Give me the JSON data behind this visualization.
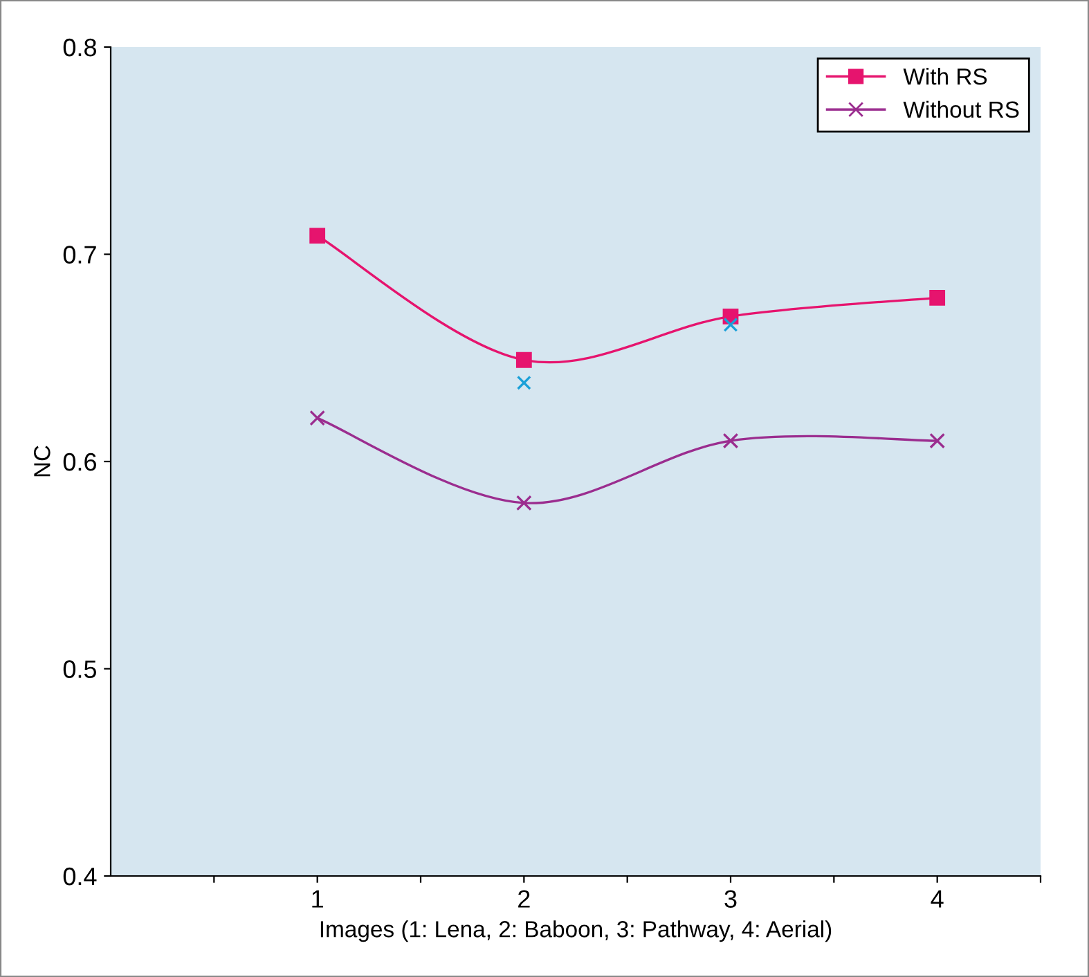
{
  "chart_data": {
    "type": "line",
    "xlabel": "Images (1: Lena, 2: Baboon, 3: Pathway, 4: Aerial)",
    "ylabel": "NC",
    "x": [
      1,
      2,
      3,
      4
    ],
    "series": [
      {
        "name": "With RS",
        "color": "#e6146e",
        "values": [
          0.709,
          0.649,
          0.67,
          0.679
        ],
        "marker": "square"
      },
      {
        "name": "Without RS",
        "color": "#9b2d8f",
        "values": [
          0.621,
          0.58,
          0.61,
          0.61
        ],
        "marker": "cross"
      },
      {
        "type": "scatter",
        "color": "#1aa0d8",
        "x": [
          2,
          3
        ],
        "values": [
          0.638,
          0.666
        ],
        "marker": "cross"
      }
    ],
    "xlim": [
      0,
      4.5
    ],
    "xticks": [
      {
        "value": 0.5,
        "label": null
      },
      1,
      {
        "value": 1.5,
        "label": null
      },
      2,
      {
        "value": 2.5,
        "label": null
      },
      3,
      {
        "value": 3.5,
        "label": null
      },
      4,
      {
        "value": 4.5,
        "label": null
      }
    ],
    "ylim": [
      0.4,
      0.8
    ],
    "yticks": [
      0.4,
      0.5,
      0.6,
      0.7,
      0.8
    ],
    "grid": false,
    "legend": "top right"
  }
}
